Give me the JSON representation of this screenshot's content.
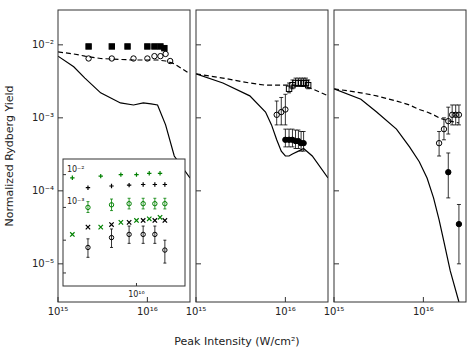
{
  "chart_data": [
    {
      "type": "line",
      "log": true,
      "grid": false,
      "ylabel": "Normalized Rydberg Yield",
      "xlim": [
        1000000000000000.0,
        3e+16
      ],
      "ylim": [
        3e-06,
        0.03
      ],
      "xticks": [
        {
          "value": 1000000000000000.0,
          "label": "10¹⁵"
        },
        {
          "value": 1e+16,
          "label": "10¹⁶"
        }
      ],
      "yticks": [
        {
          "value": 1e-05,
          "label": "10⁻⁵"
        },
        {
          "value": 0.0001,
          "label": "10⁻⁴"
        },
        {
          "value": 0.001,
          "label": "10⁻³"
        },
        {
          "value": 0.01,
          "label": "10⁻²"
        }
      ],
      "series": [
        {
          "type": "line",
          "line_style": "solid",
          "color": "#000000",
          "x": [
            1000000000000000.0,
            1500000000000000.0,
            2000000000000000.0,
            3000000000000000.0,
            5000000000000000.0,
            7000000000000000.0,
            9000000000000000.0,
            1.1e+16,
            1.3e+16,
            1.6e+16,
            2e+16,
            3e+16
          ],
          "values": [
            0.007,
            0.005,
            0.0035,
            0.0022,
            0.0016,
            0.0015,
            0.0016,
            0.00155,
            0.0015,
            0.0008,
            0.0003,
            0.00015
          ]
        },
        {
          "type": "line",
          "line_style": "dashed",
          "color": "#000000",
          "x": [
            1000000000000000.0,
            1500000000000000.0,
            2000000000000000.0,
            3000000000000000.0,
            5000000000000000.0,
            7000000000000000.0,
            9000000000000000.0,
            1.1e+16,
            1.3e+16,
            1.6e+16,
            2e+16,
            3e+16
          ],
          "values": [
            0.008,
            0.0075,
            0.007,
            0.0065,
            0.0063,
            0.0062,
            0.0062,
            0.0062,
            0.0062,
            0.006,
            0.0055,
            0.004
          ]
        },
        {
          "type": "scatter",
          "marker": "square",
          "color": "#000000",
          "x": [
            2200000000000000.0,
            4000000000000000.0,
            6000000000000000.0,
            1e+16,
            1.2e+16,
            1.4e+16,
            1.55e+16
          ],
          "values": [
            0.0095,
            0.0095,
            0.0095,
            0.0095,
            0.0095,
            0.0095,
            0.009
          ]
        },
        {
          "type": "scatter",
          "marker": "open-circle",
          "color": "#000000",
          "x": [
            2200000000000000.0,
            4000000000000000.0,
            7000000000000000.0,
            1e+16,
            1.2e+16,
            1.4e+16,
            1.6e+16,
            1.8e+16
          ],
          "values": [
            0.0065,
            0.0065,
            0.0065,
            0.0065,
            0.007,
            0.007,
            0.0075,
            0.006
          ]
        }
      ]
    },
    {
      "type": "line",
      "log": true,
      "grid": false,
      "tick_labels": "x",
      "xlabel": "Peak Intensity (W/cm²)",
      "xlim": [
        1000000000000000.0,
        3e+16
      ],
      "ylim": [
        3e-06,
        0.03
      ],
      "xticks": [
        {
          "value": 1000000000000000.0,
          "label": "10¹⁵"
        },
        {
          "value": 1e+16,
          "label": "10¹⁶"
        }
      ],
      "yticks": [
        1e-05,
        0.0001,
        0.001,
        0.01
      ],
      "series": [
        {
          "type": "line",
          "line_style": "solid",
          "color": "#000000",
          "x": [
            1000000000000000.0,
            2000000000000000.0,
            4000000000000000.0,
            6000000000000000.0,
            7000000000000000.0,
            8000000000000000.0,
            9000000000000000.0,
            1e+16,
            1.1e+16,
            1.2e+16,
            1.4e+16,
            1.6e+16,
            2e+16,
            3e+16
          ],
          "values": [
            0.004,
            0.003,
            0.002,
            0.0012,
            0.0008,
            0.0005,
            0.00035,
            0.0003,
            0.0003,
            0.00032,
            0.00035,
            0.00038,
            0.0003,
            0.00015
          ]
        },
        {
          "type": "line",
          "line_style": "dashed",
          "color": "#000000",
          "x": [
            1000000000000000.0,
            2000000000000000.0,
            4000000000000000.0,
            6000000000000000.0,
            8000000000000000.0,
            1e+16,
            1.2e+16,
            1.4e+16,
            1.6e+16,
            2e+16,
            3e+16
          ],
          "values": [
            0.004,
            0.0035,
            0.003,
            0.0028,
            0.0028,
            0.0028,
            0.0028,
            0.0028,
            0.0027,
            0.0025,
            0.002
          ]
        },
        {
          "type": "scatter",
          "marker": "open-circle",
          "color": "#000000",
          "x": [
            8000000000000000.0,
            9000000000000000.0,
            1e+16
          ],
          "values": [
            0.0011,
            0.0012,
            0.0013
          ],
          "error_low": [
            0.0003,
            0.0004,
            0.0005
          ],
          "error_high": [
            0.0006,
            0.0007,
            0.0008
          ]
        },
        {
          "type": "scatter",
          "marker": "circle",
          "color": "#000000",
          "x": [
            1e+16,
            1.1e+16,
            1.2e+16,
            1.3e+16,
            1.4e+16,
            1.5e+16,
            1.6e+16
          ],
          "values": [
            0.0005,
            0.0005,
            0.0005,
            0.00048,
            0.00048,
            0.00045,
            0.00045
          ],
          "error_low": [
            0.0001,
            0.0001,
            0.0001,
            0.0001,
            0.0001,
            0.0001,
            0.0001
          ],
          "error_high": [
            0.0002,
            0.0002,
            0.0002,
            0.0002,
            0.0002,
            0.0002,
            0.0002
          ]
        },
        {
          "type": "scatter",
          "marker": "open-square",
          "color": "#000000",
          "x": [
            1.1e+16,
            1.2e+16,
            1.3e+16,
            1.4e+16,
            1.5e+16,
            1.6e+16,
            1.7e+16,
            1.8e+16
          ],
          "values": [
            0.0025,
            0.0028,
            0.003,
            0.003,
            0.003,
            0.003,
            0.003,
            0.0028
          ],
          "error_low": [
            0.0003,
            0.0003,
            0.0003,
            0.0003,
            0.0003,
            0.0003,
            0.0003,
            0.0003
          ],
          "error_high": [
            0.0005,
            0.0005,
            0.0005,
            0.0005,
            0.0005,
            0.0005,
            0.0005,
            0.0005
          ]
        }
      ]
    },
    {
      "type": "line",
      "log": true,
      "grid": false,
      "tick_labels": "x",
      "xlim": [
        1000000000000000.0,
        3e+16
      ],
      "ylim": [
        3e-06,
        0.03
      ],
      "xticks": [
        {
          "value": 1000000000000000.0,
          "label": "10¹⁵"
        },
        {
          "value": 1e+16,
          "label": "10¹⁶"
        }
      ],
      "yticks": [
        1e-05,
        0.0001,
        0.001,
        0.01
      ],
      "series": [
        {
          "type": "line",
          "line_style": "solid",
          "color": "#000000",
          "x": [
            1000000000000000.0,
            2000000000000000.0,
            3000000000000000.0,
            5000000000000000.0,
            7000000000000000.0,
            9000000000000000.0,
            1.1e+16,
            1.3e+16,
            1.5e+16,
            1.7e+16,
            2e+16,
            2.5e+16
          ],
          "values": [
            0.0025,
            0.0018,
            0.0012,
            0.0007,
            0.0004,
            0.00025,
            0.00015,
            8e-05,
            4e-05,
            2e-05,
            8e-06,
            3e-06
          ]
        },
        {
          "type": "line",
          "line_style": "dashed",
          "color": "#000000",
          "x": [
            1000000000000000.0,
            2000000000000000.0,
            3000000000000000.0,
            5000000000000000.0,
            7000000000000000.0,
            9000000000000000.0,
            1.1e+16,
            1.3e+16,
            1.5e+16,
            1.7e+16,
            2e+16,
            2.5e+16
          ],
          "values": [
            0.0025,
            0.0022,
            0.002,
            0.0017,
            0.0015,
            0.0013,
            0.0012,
            0.0011,
            0.001,
            0.00095,
            0.0009,
            0.00085
          ]
        },
        {
          "type": "scatter",
          "marker": "open-circle",
          "color": "#000000",
          "x": [
            1.5e+16,
            1.7e+16,
            1.9e+16,
            2.1e+16,
            2.3e+16,
            2.5e+16
          ],
          "values": [
            0.00045,
            0.0007,
            0.0009,
            0.0011,
            0.0011,
            0.0011
          ],
          "error_low": [
            0.00015,
            0.0002,
            0.0003,
            0.0003,
            0.0003,
            0.0003
          ],
          "error_high": [
            0.0002,
            0.0003,
            0.0005,
            0.0004,
            0.0004,
            0.0004
          ]
        },
        {
          "type": "scatter",
          "marker": "circle",
          "color": "#000000",
          "x": [
            1.9e+16,
            2.5e+16
          ],
          "values": [
            0.00018,
            3.5e-05
          ],
          "error_low": [
            0.0001,
            2.5e-05
          ],
          "error_high": [
            0.00015,
            3e-05
          ]
        }
      ]
    },
    {
      "type": "scatter",
      "log": true,
      "grid": false,
      "tick_labels": "x",
      "xlim": [
        3500000000000000.0,
        2e+16
      ],
      "ylim": [
        4e-06,
        0.03
      ],
      "xticks": [
        {
          "value": 1e+16,
          "label": "10¹⁶"
        }
      ],
      "yticks": [
        1e-05,
        0.0001,
        0.001,
        0.01
      ],
      "annotations": [
        {
          "text": "10⁻²",
          "x": 3700000000000000.0,
          "y": 0.015
        },
        {
          "text": "10⁻³",
          "x": 3700000000000000.0,
          "y": 0.0015
        }
      ],
      "series": [
        {
          "type": "scatter",
          "marker": "plus",
          "color": "#008000",
          "x": [
            4000000000000000.0,
            6000000000000000.0,
            8000000000000000.0,
            1e+16,
            1.2e+16,
            1.4e+16
          ],
          "values": [
            0.008,
            0.009,
            0.01,
            0.01,
            0.011,
            0.011
          ]
        },
        {
          "type": "scatter",
          "marker": "cross",
          "color": "#008000",
          "x": [
            4000000000000000.0,
            6000000000000000.0,
            8000000000000000.0,
            1e+16,
            1.2e+16,
            1.4e+16
          ],
          "values": [
            0.00015,
            0.00025,
            0.00035,
            0.0004,
            0.00045,
            0.0005
          ]
        },
        {
          "type": "scatter",
          "marker": "plus",
          "color": "#000000",
          "x": [
            5000000000000000.0,
            7000000000000000.0,
            9000000000000000.0,
            1.1e+16,
            1.3e+16,
            1.5e+16
          ],
          "values": [
            0.004,
            0.0045,
            0.0048,
            0.005,
            0.005,
            0.005
          ]
        },
        {
          "type": "scatter",
          "marker": "cross",
          "color": "#000000",
          "x": [
            5000000000000000.0,
            7000000000000000.0,
            9000000000000000.0,
            1.1e+16,
            1.3e+16,
            1.5e+16
          ],
          "values": [
            0.00025,
            0.0003,
            0.00035,
            0.0004,
            0.0004,
            0.0004
          ]
        },
        {
          "type": "scatter",
          "marker": "open-circle",
          "color": "#008000",
          "x": [
            5000000000000000.0,
            7000000000000000.0,
            9000000000000000.0,
            1.1e+16,
            1.3e+16,
            1.5e+16
          ],
          "values": [
            0.001,
            0.0012,
            0.0013,
            0.0013,
            0.0013,
            0.0013
          ],
          "error_low": [
            0.0003,
            0.0004,
            0.0004,
            0.0004,
            0.0004,
            0.0004
          ],
          "error_high": [
            0.0005,
            0.0006,
            0.0006,
            0.0006,
            0.0006,
            0.0006
          ]
        },
        {
          "type": "scatter",
          "marker": "open-circle",
          "color": "#000000",
          "x": [
            5000000000000000.0,
            7000000000000000.0,
            9000000000000000.0,
            1.1e+16,
            1.3e+16,
            1.5e+16
          ],
          "values": [
            6e-05,
            0.00012,
            0.00015,
            0.00015,
            0.00015,
            5e-05
          ],
          "error_low": [
            3e-05,
            6e-05,
            7e-05,
            7e-05,
            7e-05,
            3e-05
          ],
          "error_high": [
            5e-05,
            0.0001,
            0.00012,
            0.00012,
            0.00012,
            5e-05
          ]
        }
      ]
    }
  ]
}
